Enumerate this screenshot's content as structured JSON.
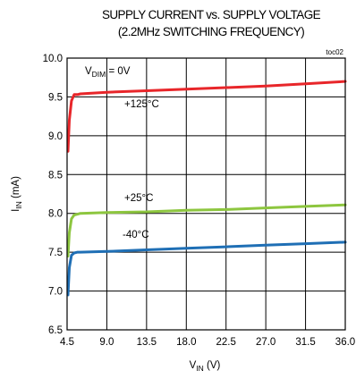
{
  "chart_data": {
    "type": "line",
    "title_lines": [
      "SUPPLY CURRENT vs. SUPPLY VOLTAGE",
      "(2.2MHz SWITCHING FREQUENCY)"
    ],
    "chart_id": "toc02",
    "xlabel": {
      "main": "V",
      "sub": "IN",
      "unit": " (V)"
    },
    "ylabel": {
      "main": "I",
      "sub": "IN",
      "unit": " (mA)"
    },
    "condition": {
      "main": "V",
      "sub": "DIM",
      "rest": " = 0V"
    },
    "xlim": [
      4.5,
      36.0
    ],
    "ylim": [
      6.5,
      10.0
    ],
    "x_ticks": [
      "4.5",
      "9.0",
      "13.5",
      "18.0",
      "22.5",
      "27.0",
      "31.5",
      "36.0"
    ],
    "y_ticks": [
      "6.5",
      "7.0",
      "7.5",
      "8.0",
      "8.5",
      "9.0",
      "9.5",
      "10.0"
    ],
    "grid": true,
    "series": [
      {
        "name": "+125°C",
        "color": "#e8262a",
        "x": [
          4.6,
          4.75,
          5.0,
          5.3,
          5.7,
          6.0,
          9.0,
          13.5,
          18.0,
          22.5,
          27.0,
          31.5,
          36.0
        ],
        "y": [
          8.8,
          9.2,
          9.45,
          9.53,
          9.53,
          9.54,
          9.56,
          9.58,
          9.6,
          9.62,
          9.64,
          9.67,
          9.7
        ]
      },
      {
        "name": "+25°C",
        "color": "#8dc63f",
        "x": [
          4.6,
          4.75,
          5.0,
          5.3,
          5.7,
          6.0,
          9.0,
          13.5,
          18.0,
          22.5,
          27.0,
          31.5,
          36.0
        ],
        "y": [
          7.45,
          7.75,
          7.93,
          7.98,
          7.99,
          8.0,
          8.01,
          8.02,
          8.04,
          8.05,
          8.07,
          8.09,
          8.11
        ]
      },
      {
        "name": "-40°C",
        "color": "#1f6fb5",
        "x": [
          4.6,
          4.75,
          5.0,
          5.3,
          5.7,
          6.0,
          9.0,
          13.5,
          18.0,
          22.5,
          27.0,
          31.5,
          36.0
        ],
        "y": [
          6.95,
          7.3,
          7.46,
          7.49,
          7.5,
          7.5,
          7.51,
          7.53,
          7.55,
          7.57,
          7.59,
          7.61,
          7.63
        ]
      }
    ]
  }
}
